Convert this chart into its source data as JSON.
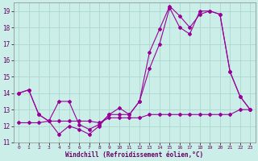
{
  "xlabel": "Windchill (Refroidissement éolien,°C)",
  "background_color": "#cceee8",
  "grid_color": "#aad8d0",
  "line_color": "#990099",
  "xlim": [
    -0.5,
    23.5
  ],
  "ylim": [
    11,
    19.5
  ],
  "yticks": [
    11,
    12,
    13,
    14,
    15,
    16,
    17,
    18,
    19
  ],
  "xticks": [
    0,
    1,
    2,
    3,
    4,
    5,
    6,
    7,
    8,
    9,
    10,
    11,
    12,
    13,
    14,
    15,
    16,
    17,
    18,
    19,
    20,
    21,
    22,
    23
  ],
  "line1_x": [
    0,
    1,
    2,
    3,
    4,
    5,
    6,
    7,
    8,
    9,
    10,
    11,
    12,
    13,
    14,
    15,
    16,
    17,
    18,
    19,
    20,
    21,
    22,
    23
  ],
  "line1_y": [
    14.0,
    14.2,
    12.7,
    12.3,
    11.5,
    12.0,
    11.8,
    11.5,
    12.0,
    12.7,
    13.1,
    12.7,
    13.5,
    16.5,
    17.9,
    19.3,
    18.7,
    18.0,
    18.8,
    19.0,
    18.8,
    15.3,
    13.8,
    13.0
  ],
  "line2_x": [
    0,
    1,
    2,
    3,
    4,
    5,
    6,
    7,
    8,
    9,
    10,
    11,
    12,
    13,
    14,
    15,
    16,
    17,
    18,
    19,
    20,
    21,
    22,
    23
  ],
  "line2_y": [
    14.0,
    14.2,
    12.7,
    12.3,
    13.5,
    13.5,
    12.1,
    11.8,
    12.1,
    12.7,
    12.7,
    12.7,
    13.5,
    15.5,
    17.0,
    19.2,
    18.0,
    17.6,
    19.0,
    19.0,
    18.8,
    15.3,
    13.8,
    13.0
  ],
  "line3_x": [
    0,
    1,
    2,
    3,
    4,
    5,
    6,
    7,
    8,
    9,
    10,
    11,
    12,
    13,
    14,
    15,
    16,
    17,
    18,
    19,
    20,
    21,
    22,
    23
  ],
  "line3_y": [
    12.2,
    12.2,
    12.2,
    12.3,
    12.3,
    12.3,
    12.3,
    12.3,
    12.2,
    12.5,
    12.5,
    12.5,
    12.5,
    12.7,
    12.7,
    12.7,
    12.7,
    12.7,
    12.7,
    12.7,
    12.7,
    12.7,
    13.0,
    13.0
  ]
}
